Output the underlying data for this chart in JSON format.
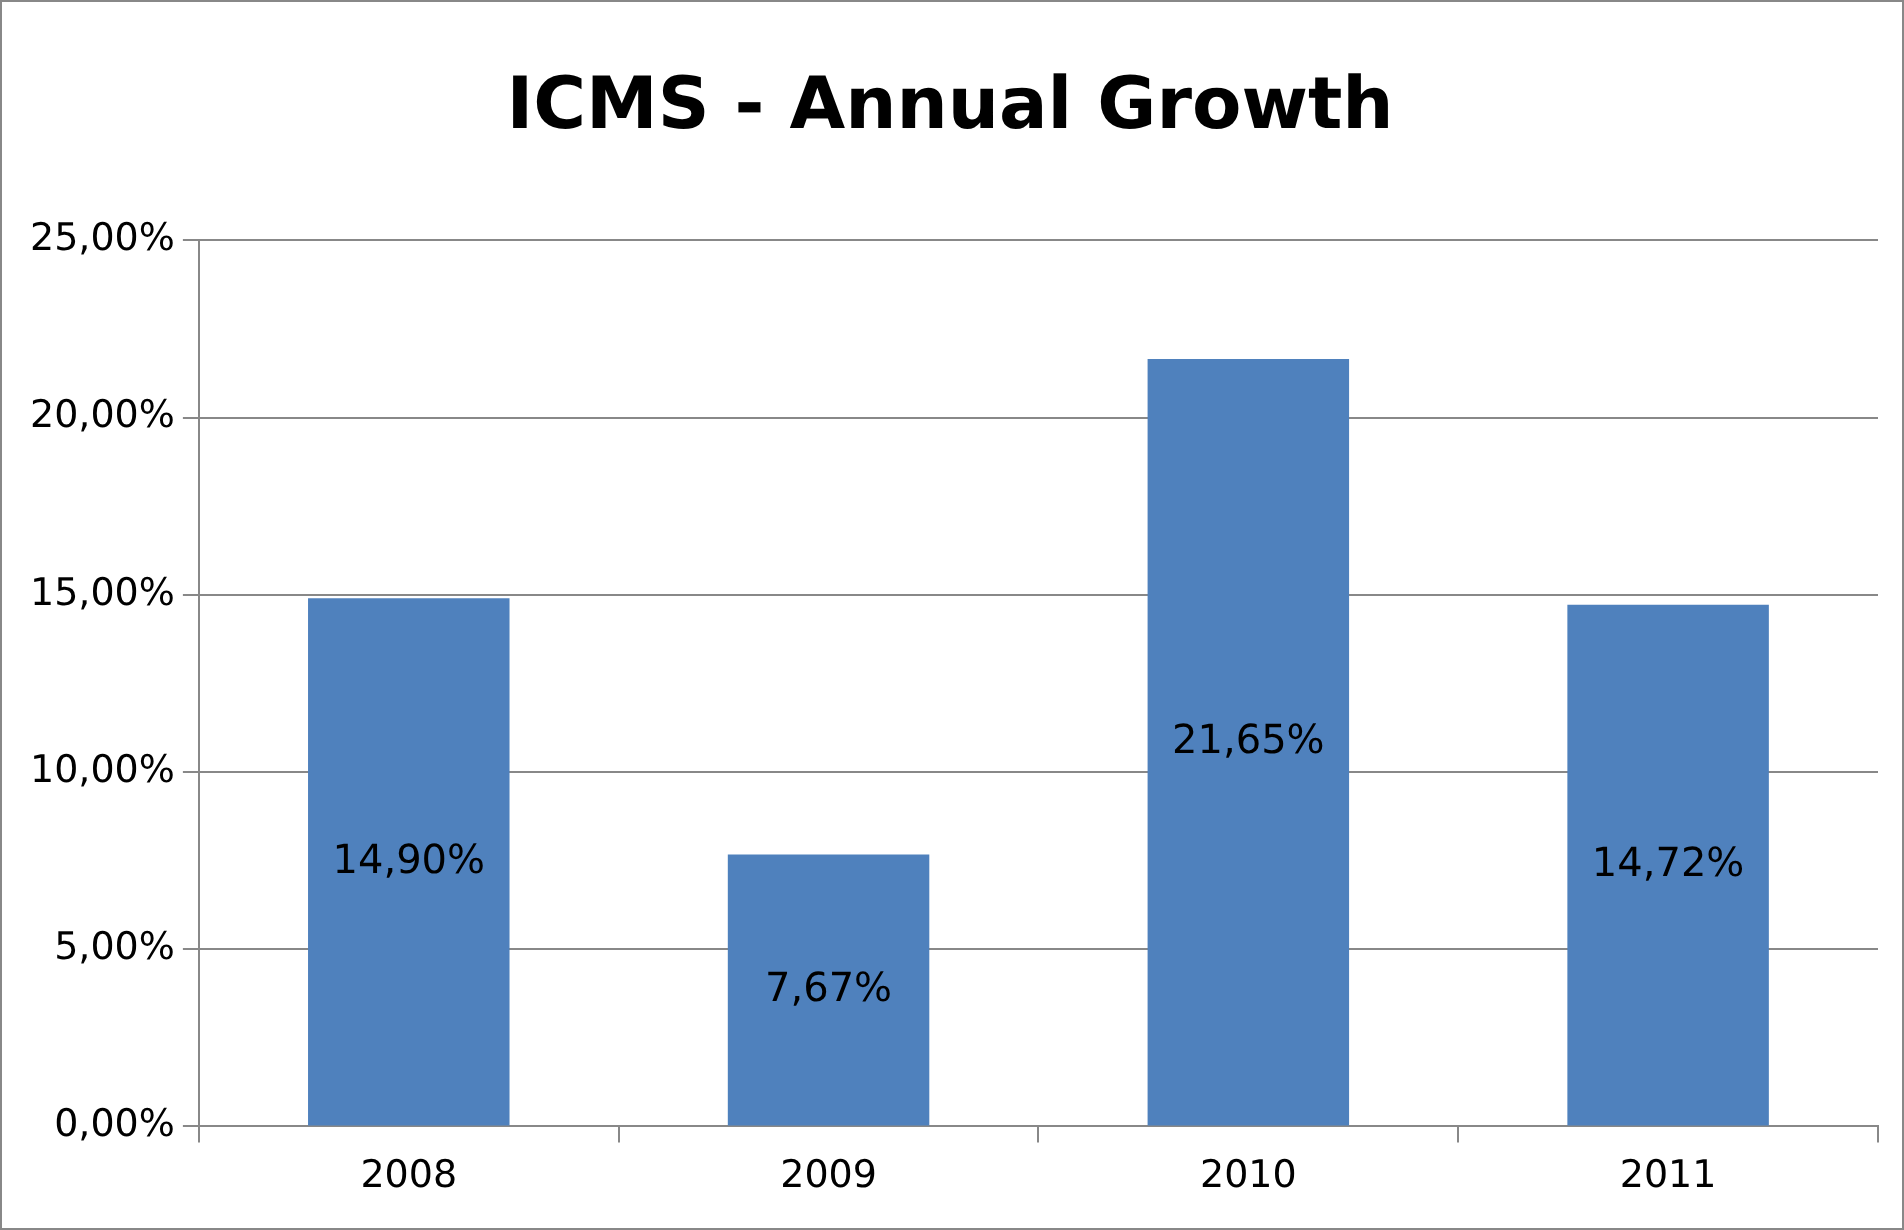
{
  "chart_data": {
    "type": "bar",
    "title": "ICMS - Annual Growth",
    "categories": [
      "2008",
      "2009",
      "2010",
      "2011"
    ],
    "series": [
      {
        "color": "#4f81bd",
        "values": [
          14.9,
          7.67,
          21.65,
          14.72
        ],
        "value_labels": [
          "14,90%",
          "7,67%",
          "21,65%",
          "14,72%"
        ]
      }
    ],
    "ylim": [
      0,
      25
    ],
    "yticks": [
      {
        "value": 0,
        "label": "0,00%"
      },
      {
        "value": 5,
        "label": "5,00%"
      },
      {
        "value": 10,
        "label": "10,00%"
      },
      {
        "value": 15,
        "label": "15,00%"
      },
      {
        "value": 20,
        "label": "20,00%"
      },
      {
        "value": 25,
        "label": "25,00%"
      }
    ],
    "grid": "y",
    "legend": false
  }
}
